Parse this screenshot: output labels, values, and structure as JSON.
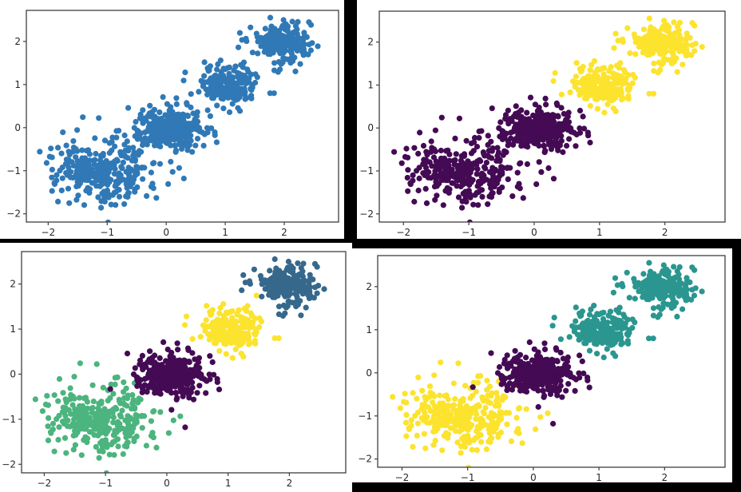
{
  "app": {
    "description": "Grid of four scatter plots of the same two-dimensional point cloud shown with different cluster colorings"
  },
  "chart_data": [
    {
      "position": "top-left",
      "type": "scatter",
      "title": "",
      "xlabel": "",
      "ylabel": "",
      "k": 1,
      "xlim": [
        -2.37,
        2.92
      ],
      "ylim": [
        -2.19,
        2.72
      ],
      "xtick_values": [
        -2,
        -1,
        0,
        1,
        2
      ],
      "xtick_labels": [
        "−2",
        "−1",
        "0",
        "1",
        "2"
      ],
      "ytick_values": [
        -2,
        -1,
        0,
        1,
        2
      ],
      "ytick_labels": [
        "−2",
        "−1",
        "0",
        "1",
        "2"
      ],
      "grid": false,
      "legend": "none",
      "series": [
        {
          "name": "blob at (-1,-1)",
          "center": [
            -1.05,
            -1.0
          ],
          "std": [
            0.42,
            0.38
          ],
          "n": 300,
          "color": "#3079b6"
        },
        {
          "name": "blob at (0,0)",
          "center": [
            0.05,
            0.0
          ],
          "std": [
            0.27,
            0.25
          ],
          "n": 280,
          "color": "#3079b6"
        },
        {
          "name": "blob at (1,1)",
          "center": [
            1.05,
            1.0
          ],
          "std": [
            0.23,
            0.22
          ],
          "n": 200,
          "color": "#3079b6"
        },
        {
          "name": "blob at (2,2)",
          "center": [
            2.0,
            2.0
          ],
          "std": [
            0.25,
            0.23
          ],
          "n": 200,
          "color": "#3079b6"
        }
      ],
      "outliers": [
        {
          "point": [
            0.3,
            -1.18
          ],
          "series": 1
        },
        {
          "point": [
            0.42,
            0.78
          ],
          "series": 2
        }
      ]
    },
    {
      "position": "top-right",
      "type": "scatter",
      "title": "",
      "xlabel": "",
      "ylabel": "",
      "k": 2,
      "xlim": [
        -2.37,
        2.92
      ],
      "ylim": [
        -2.19,
        2.72
      ],
      "xtick_values": [
        -2,
        -1,
        0,
        1,
        2
      ],
      "xtick_labels": [
        "−2",
        "−1",
        "0",
        "1",
        "2"
      ],
      "ytick_values": [
        -2,
        -1,
        0,
        1,
        2
      ],
      "ytick_labels": [
        "−2",
        "−1",
        "0",
        "1",
        "2"
      ],
      "grid": false,
      "legend": "none",
      "series": [
        {
          "name": "blob at (-1,-1)",
          "center": [
            -1.05,
            -1.0
          ],
          "std": [
            0.42,
            0.38
          ],
          "n": 300,
          "color": "#440a54"
        },
        {
          "name": "blob at (0,0)",
          "center": [
            0.05,
            0.0
          ],
          "std": [
            0.27,
            0.25
          ],
          "n": 280,
          "color": "#440a54"
        },
        {
          "name": "blob at (1,1)",
          "center": [
            1.05,
            1.0
          ],
          "std": [
            0.23,
            0.22
          ],
          "n": 200,
          "color": "#fce32e"
        },
        {
          "name": "blob at (2,2)",
          "center": [
            2.0,
            2.0
          ],
          "std": [
            0.25,
            0.23
          ],
          "n": 200,
          "color": "#fce32e"
        }
      ],
      "outliers": [
        {
          "point": [
            0.3,
            -1.18
          ],
          "series": 1
        },
        {
          "point": [
            0.42,
            0.78
          ],
          "series": 2
        }
      ]
    },
    {
      "position": "bottom-left",
      "type": "scatter",
      "title": "",
      "xlabel": "",
      "ylabel": "",
      "k": 4,
      "xlim": [
        -2.37,
        2.92
      ],
      "ylim": [
        -2.19,
        2.72
      ],
      "xtick_values": [
        -2,
        -1,
        0,
        1,
        2
      ],
      "xtick_labels": [
        "−2",
        "−1",
        "0",
        "1",
        "2"
      ],
      "ytick_values": [
        -2,
        -1,
        0,
        1,
        2
      ],
      "ytick_labels": [
        "−2",
        "−1",
        "0",
        "1",
        "2"
      ],
      "grid": false,
      "legend": "none",
      "series": [
        {
          "name": "blob at (-1,-1)",
          "center": [
            -1.05,
            -1.0
          ],
          "std": [
            0.42,
            0.38
          ],
          "n": 300,
          "color": "#4cb47e"
        },
        {
          "name": "blob at (0,0)",
          "center": [
            0.05,
            0.0
          ],
          "std": [
            0.27,
            0.25
          ],
          "n": 280,
          "color": "#440a54"
        },
        {
          "name": "blob at (1,1)",
          "center": [
            1.05,
            1.0
          ],
          "std": [
            0.23,
            0.22
          ],
          "n": 200,
          "color": "#fce32e"
        },
        {
          "name": "blob at (2,2)",
          "center": [
            2.0,
            2.0
          ],
          "std": [
            0.25,
            0.23
          ],
          "n": 200,
          "color": "#36688c"
        }
      ],
      "outliers": [
        {
          "point": [
            0.3,
            -1.18
          ],
          "series": 1
        },
        {
          "point": [
            0.42,
            0.78
          ],
          "series": 2
        }
      ]
    },
    {
      "position": "bottom-right",
      "type": "scatter",
      "title": "",
      "xlabel": "",
      "ylabel": "",
      "k": 3,
      "xlim": [
        -2.37,
        2.92
      ],
      "ylim": [
        -2.19,
        2.72
      ],
      "xtick_values": [
        -2,
        -1,
        0,
        1,
        2
      ],
      "xtick_labels": [
        "−2",
        "−1",
        "0",
        "1",
        "2"
      ],
      "ytick_values": [
        -2,
        -1,
        0,
        1,
        2
      ],
      "ytick_labels": [
        "−2",
        "−1",
        "0",
        "1",
        "2"
      ],
      "grid": false,
      "legend": "none",
      "series": [
        {
          "name": "blob at (-1,-1)",
          "center": [
            -1.05,
            -1.0
          ],
          "std": [
            0.42,
            0.38
          ],
          "n": 300,
          "color": "#fce32e"
        },
        {
          "name": "blob at (0,0)",
          "center": [
            0.05,
            0.0
          ],
          "std": [
            0.27,
            0.25
          ],
          "n": 280,
          "color": "#440a54"
        },
        {
          "name": "blob at (1,1)",
          "center": [
            1.05,
            1.0
          ],
          "std": [
            0.23,
            0.22
          ],
          "n": 200,
          "color": "#2a968f"
        },
        {
          "name": "blob at (2,2)",
          "center": [
            2.0,
            2.0
          ],
          "std": [
            0.25,
            0.23
          ],
          "n": 200,
          "color": "#2a968f"
        }
      ],
      "outliers": [
        {
          "point": [
            0.3,
            -1.18
          ],
          "series": 1
        },
        {
          "point": [
            0.42,
            0.78
          ],
          "series": 2
        }
      ]
    }
  ]
}
